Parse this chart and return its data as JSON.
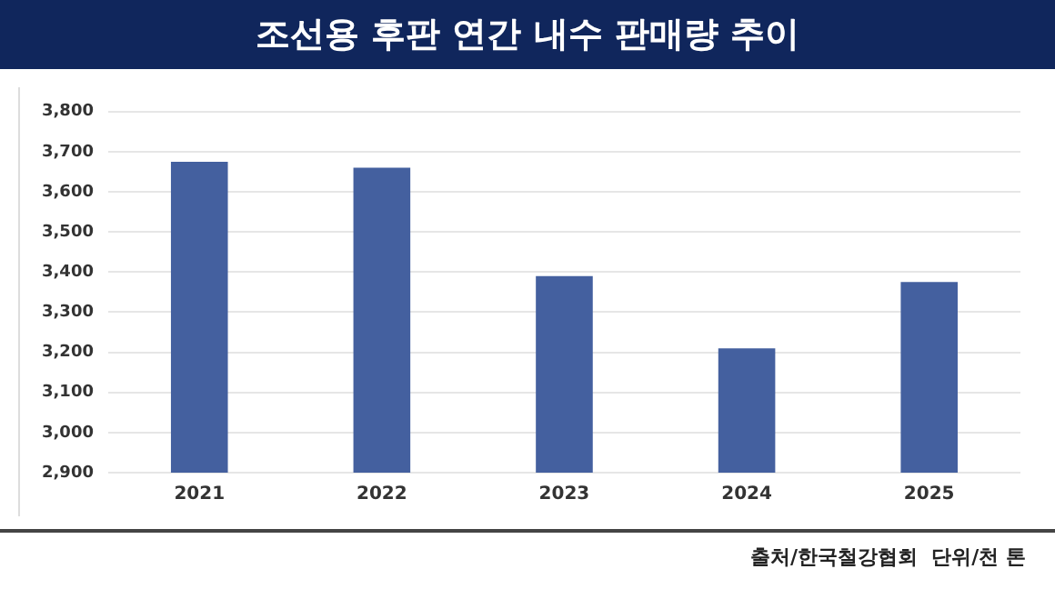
{
  "chart_data": {
    "type": "bar",
    "title": "조선용 후판 연간 내수 판매량 추이",
    "categories": [
      "2021",
      "2022",
      "2023",
      "2024",
      "2025"
    ],
    "values": [
      3675,
      3660,
      3390,
      3210,
      3375
    ],
    "color": "#44609f",
    "ylim": [
      2900,
      3800
    ],
    "yticks": [
      {
        "value": 2900,
        "label": "2,900"
      },
      {
        "value": 3000,
        "label": "3,000"
      },
      {
        "value": 3100,
        "label": "3,100"
      },
      {
        "value": 3200,
        "label": "3,200"
      },
      {
        "value": 3300,
        "label": "3,300"
      },
      {
        "value": 3400,
        "label": "3,400"
      },
      {
        "value": 3500,
        "label": "3,500"
      },
      {
        "value": 3600,
        "label": "3,600"
      },
      {
        "value": 3700,
        "label": "3,700"
      },
      {
        "value": 3800,
        "label": "3,800"
      }
    ],
    "grid": "y",
    "annotations": [
      "출처/한국철강협회  단위/천 톤"
    ]
  }
}
